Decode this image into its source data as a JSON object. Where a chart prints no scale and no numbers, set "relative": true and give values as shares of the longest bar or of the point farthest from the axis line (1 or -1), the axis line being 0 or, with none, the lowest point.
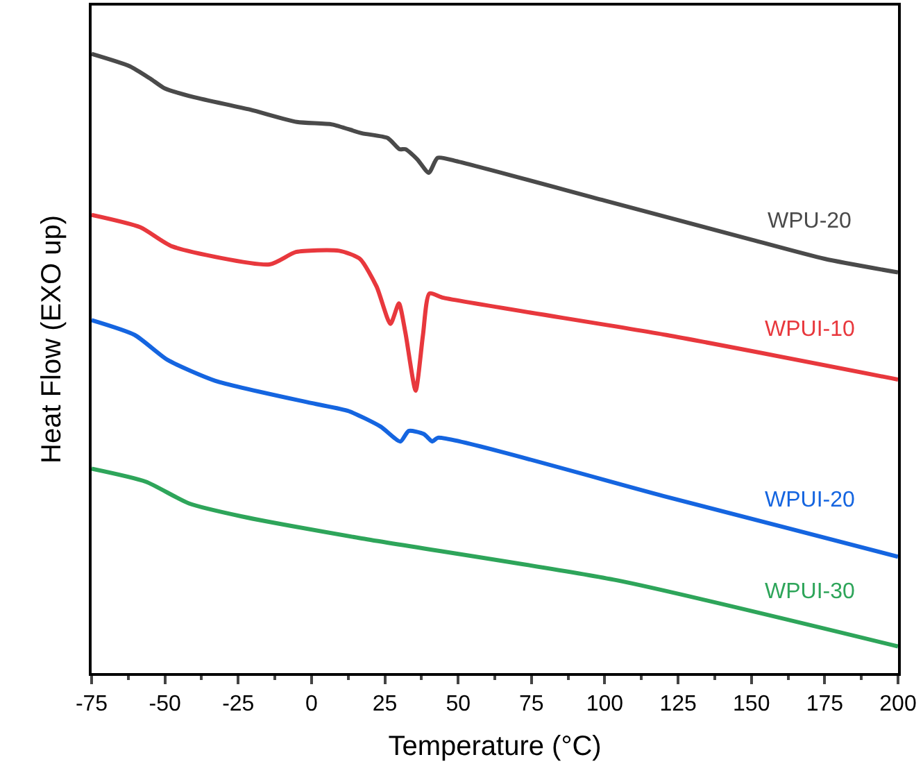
{
  "chart_data": {
    "type": "line",
    "relative": true,
    "xlabel": "Temperature (°C)",
    "ylabel": "Heat Flow (EXO up)",
    "xlim": [
      -75,
      200
    ],
    "xticks": [
      -75,
      -50,
      -25,
      0,
      25,
      50,
      75,
      100,
      125,
      150,
      175,
      200
    ],
    "legend": false,
    "marker": "none",
    "line_style": "solid",
    "series": [
      {
        "name": "WPU-20",
        "color": "#4a4a4a",
        "x": [
          -75,
          -62,
          -55,
          -50,
          -40,
          -21,
          -5,
          7,
          17,
          26,
          30,
          32,
          36,
          40,
          43,
          50,
          100,
          150,
          175,
          200
        ],
        "values": [
          1.0,
          0.98,
          0.96,
          0.944,
          0.93,
          0.91,
          0.89,
          0.886,
          0.872,
          0.864,
          0.846,
          0.846,
          0.83,
          0.808,
          0.832,
          0.826,
          0.763,
          0.7,
          0.669,
          0.647
        ]
      },
      {
        "name": "WPUI-10",
        "color": "#e8383d",
        "x": [
          -75,
          -58.4,
          -47.5,
          -14.3,
          -5.3,
          9.4,
          16.5,
          22.2,
          26.9,
          29.8,
          32,
          35.5,
          38,
          40.2,
          45,
          121,
          200
        ],
        "values": [
          0.74,
          0.72,
          0.689,
          0.66,
          0.68,
          0.682,
          0.669,
          0.624,
          0.564,
          0.597,
          0.55,
          0.456,
          0.546,
          0.613,
          0.606,
          0.546,
          0.474
        ]
      },
      {
        "name": "WPUI-20",
        "color": "#1565e0",
        "x": [
          -75,
          -60.3,
          -49.2,
          -32.8,
          0,
          12.7,
          23.6,
          30.3,
          33.1,
          38.3,
          41.2,
          43.1,
          120,
          200
        ],
        "values": [
          0.57,
          0.546,
          0.506,
          0.472,
          0.436,
          0.423,
          0.398,
          0.374,
          0.391,
          0.386,
          0.374,
          0.38,
          0.286,
          0.188
        ]
      },
      {
        "name": "WPUI-30",
        "color": "#2ea55a",
        "x": [
          -75,
          -56.5,
          -41.8,
          -23.8,
          16.5,
          104,
          200
        ],
        "values": [
          0.33,
          0.309,
          0.274,
          0.253,
          0.218,
          0.15,
          0.043
        ]
      }
    ]
  }
}
